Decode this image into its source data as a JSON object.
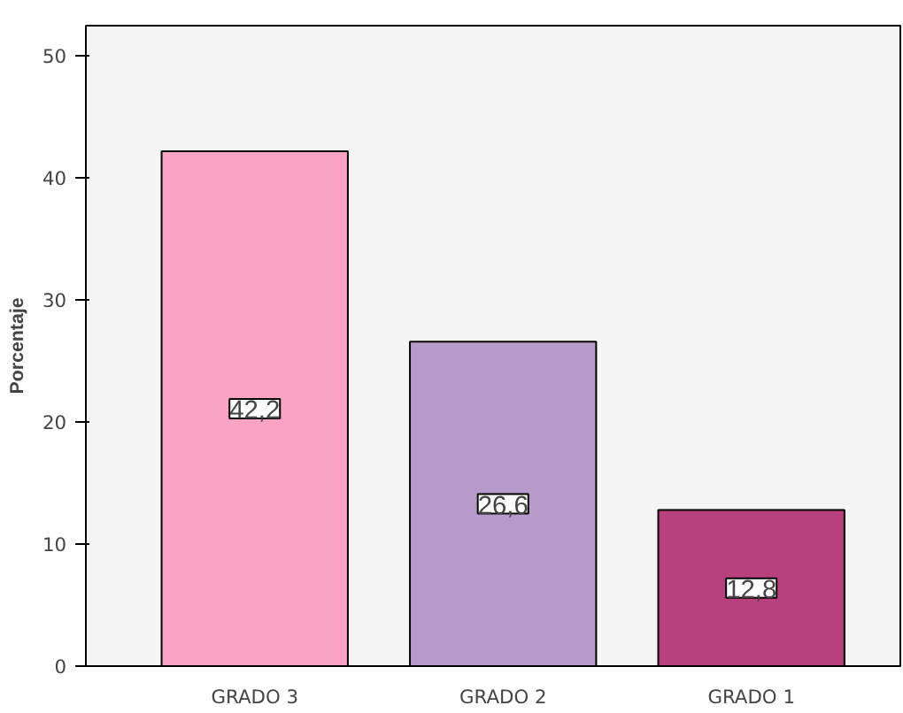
{
  "chart_data": {
    "type": "bar",
    "ylabel": "Porcentaje",
    "categories": [
      "GRADO 3",
      "GRADO 2",
      "GRADO 1"
    ],
    "values": [
      42.2,
      26.6,
      12.8
    ],
    "colors": [
      "#fba3c5",
      "#b79ac9",
      "#b9407e"
    ],
    "value_labels": [
      "42,2",
      "26,6",
      "12,8"
    ],
    "ylim": [
      0,
      52.5
    ],
    "yticks": [
      0,
      10,
      20,
      30,
      40,
      50
    ],
    "grid": false
  }
}
